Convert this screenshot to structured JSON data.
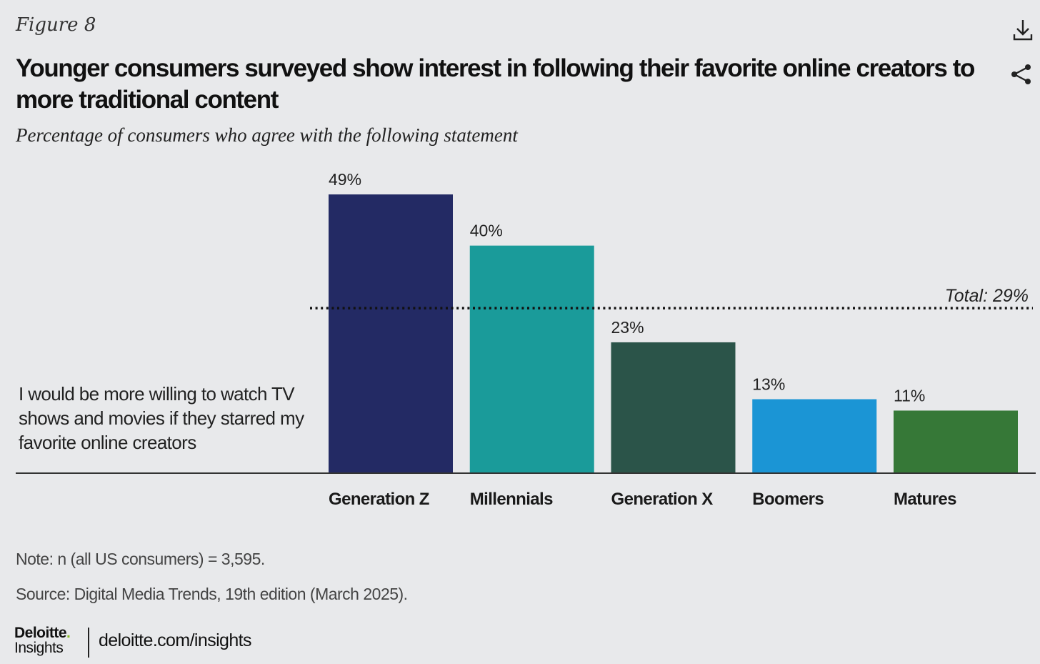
{
  "figure_label": "Figure 8",
  "title": "Younger consumers surveyed show interest in following their favorite online creators to more traditional content",
  "subtitle": "Percentage of consumers who agree with the following statement",
  "statement": "I would be more willing to watch TV shows and movies if they starred my favorite online creators",
  "icons": {
    "download": "download-icon",
    "share": "share-icon"
  },
  "note": "Note: n (all US consumers) = 3,595.",
  "source": "Source: Digital Media Trends, 19th edition (March 2025).",
  "brand": {
    "name": "Deloitte",
    "dot": ".",
    "sub": "Insights",
    "url": "deloitte.com/insights"
  },
  "chart_data": {
    "type": "bar",
    "categories": [
      "Generation Z",
      "Millennials",
      "Generation X",
      "Boomers",
      "Matures"
    ],
    "values": [
      49,
      40,
      23,
      13,
      11
    ],
    "value_labels": [
      "49%",
      "40%",
      "23%",
      "13%",
      "11%"
    ],
    "colors": [
      "#232a64",
      "#1a9b9a",
      "#2b5449",
      "#1b95d5",
      "#367837"
    ],
    "reference_line": {
      "value": 29,
      "label": "Total: 29%"
    },
    "ylim": [
      0,
      55
    ],
    "grid": false
  }
}
